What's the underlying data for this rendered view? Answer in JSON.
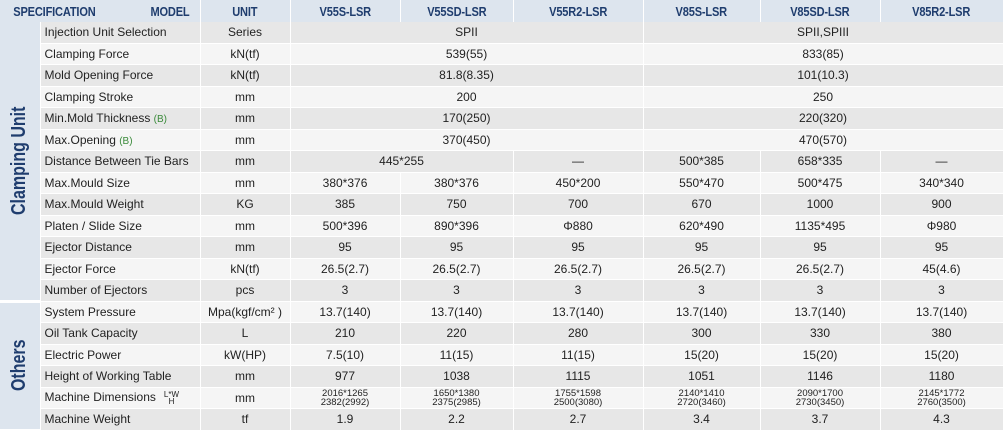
{
  "header": {
    "spec": "SPECIFICATION",
    "model": "MODEL",
    "unit": "UNIT",
    "models": [
      "V55S-LSR",
      "V55SD-LSR",
      "V55R2-LSR",
      "V85S-LSR",
      "V85SD-LSR",
      "V85R2-LSR"
    ]
  },
  "groups": [
    {
      "label": "Clamping Unit",
      "rows": [
        {
          "item": "Injection Unit Selection",
          "unit": "Series",
          "cells": [
            "SPII",
            "SPII,SPIII"
          ]
        },
        {
          "item": "Clamping Force",
          "unit": "kN(tf)",
          "cells": [
            "539(55)",
            "833(85)"
          ]
        },
        {
          "item": "Mold Opening Force",
          "unit": "kN(tf)",
          "cells": [
            "81.8(8.35)",
            "101(10.3)"
          ]
        },
        {
          "item": "Clamping Stroke",
          "unit": "mm",
          "cells": [
            "200",
            "250"
          ]
        },
        {
          "item": "Min.Mold Thickness",
          "note": "(B)",
          "unit": "mm",
          "cells": [
            "170(250)",
            "220(320)"
          ]
        },
        {
          "item": "Max.Opening",
          "note": "(B)",
          "unit": "mm",
          "cells": [
            "370(450)",
            "470(570)"
          ]
        },
        {
          "item": "Distance Between Tie Bars",
          "unit": "mm",
          "cells": [
            "445*255",
            "—",
            "500*385",
            "658*335",
            "—"
          ]
        },
        {
          "item": "Max.Mould  Size",
          "unit": "mm",
          "cells": [
            "380*376",
            "380*376",
            "450*200",
            "550*470",
            "500*475",
            "340*340"
          ]
        },
        {
          "item": "Max.Mould  Weight",
          "unit": "KG",
          "cells": [
            "385",
            "750",
            "700",
            "670",
            "1000",
            "900"
          ]
        },
        {
          "item": "Platen /  Slide Size",
          "unit": "mm",
          "cells": [
            "500*396",
            "890*396",
            "Φ880",
            "620*490",
            "1135*495",
            "Φ980"
          ]
        },
        {
          "item": "Ejector Distance",
          "unit": "mm",
          "cells": [
            "95",
            "95",
            "95",
            "95",
            "95",
            "95"
          ]
        },
        {
          "item": "Ejector Force",
          "unit": "kN(tf)",
          "cells": [
            "26.5(2.7)",
            "26.5(2.7)",
            "26.5(2.7)",
            "26.5(2.7)",
            "26.5(2.7)",
            "45(4.6)"
          ]
        },
        {
          "item": "Number of Ejectors",
          "unit": "pcs",
          "cells": [
            "3",
            "3",
            "3",
            "3",
            "3",
            "3"
          ]
        }
      ]
    },
    {
      "label": "Others",
      "rows": [
        {
          "item": "System Pressure",
          "unit": "Mpa(kgf/cm² )",
          "cells": [
            "13.7(140)",
            "13.7(140)",
            "13.7(140)",
            "13.7(140)",
            "13.7(140)",
            "13.7(140)"
          ]
        },
        {
          "item": "Oil Tank Capacity",
          "unit": "L",
          "cells": [
            "210",
            "220",
            "280",
            "300",
            "330",
            "380"
          ]
        },
        {
          "item": "Electric Power",
          "unit": "kW(HP)",
          "cells": [
            "7.5(10)",
            "11(15)",
            "11(15)",
            "15(20)",
            "15(20)",
            "15(20)"
          ]
        },
        {
          "item": "Height of Working Table",
          "unit": "mm",
          "cells": [
            "977",
            "1038",
            "1115",
            "1051",
            "1146",
            "1180"
          ]
        },
        {
          "item": "Machine Dimensions",
          "note_top": "L*W",
          "note_bottom": "H",
          "unit": "mm",
          "cells": [
            [
              "2016*1265",
              "2382(2992)"
            ],
            [
              "1650*1380",
              "2375(2985)"
            ],
            [
              "1755*1598",
              "2500(3080)"
            ],
            [
              "2140*1410",
              "2720(3460)"
            ],
            [
              "2090*1700",
              "2730(3450)"
            ],
            [
              "2145*1772",
              "2760(3500)"
            ]
          ]
        },
        {
          "item": "Machine Weight",
          "unit": "tf",
          "cells": [
            "1.9",
            "2.2",
            "2.7",
            "3.4",
            "3.7",
            "4.3"
          ]
        }
      ]
    }
  ]
}
